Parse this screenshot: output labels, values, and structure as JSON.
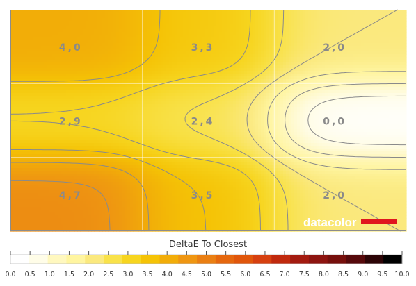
{
  "chart_data": {
    "type": "heatmap",
    "title": "",
    "xlabel": "",
    "ylabel": "",
    "grid": {
      "rows": 3,
      "cols": 3
    },
    "cell_labels": [
      [
        "4,0",
        "3,3",
        "2,0"
      ],
      [
        "2,9",
        "2,4",
        "0,0"
      ],
      [
        "4,7",
        "3,5",
        "2,0"
      ]
    ],
    "cell_values": [
      [
        4.0,
        3.3,
        2.0
      ],
      [
        2.9,
        2.4,
        0.0
      ],
      [
        4.7,
        3.5,
        2.0
      ]
    ],
    "contour_levels": [
      0.5,
      1.0,
      1.5,
      2.0,
      2.5,
      3.0,
      3.5,
      4.0,
      4.5
    ],
    "colorbar": {
      "title": "DeltaE To Closest",
      "min": 0.0,
      "max": 10.0,
      "ticks": [
        "0.0",
        "0.5",
        "1.0",
        "1.5",
        "2.0",
        "2.5",
        "3.0",
        "3.5",
        "4.0",
        "4.5",
        "5.0",
        "5.5",
        "6.0",
        "6.5",
        "7.0",
        "7.5",
        "8.0",
        "8.5",
        "9.0",
        "9.5",
        "10.0"
      ],
      "colors": [
        "#ffffff",
        "#fffde8",
        "#fff8bf",
        "#fff5a0",
        "#fbe97e",
        "#f9e24a",
        "#f7d51f",
        "#f5c306",
        "#f2ad09",
        "#ef9612",
        "#ea7f13",
        "#e5670e",
        "#e0560b",
        "#d64010",
        "#c0290d",
        "#a31b10",
        "#8d1410",
        "#760f0c",
        "#56090b",
        "#2c0406",
        "#000000"
      ]
    },
    "watermark": "datacolor",
    "colors": {
      "watermark_bar": "#e0161e",
      "grid": "#ffffff",
      "contour": "#8a8a8a",
      "label": "#8a8a8a"
    }
  }
}
